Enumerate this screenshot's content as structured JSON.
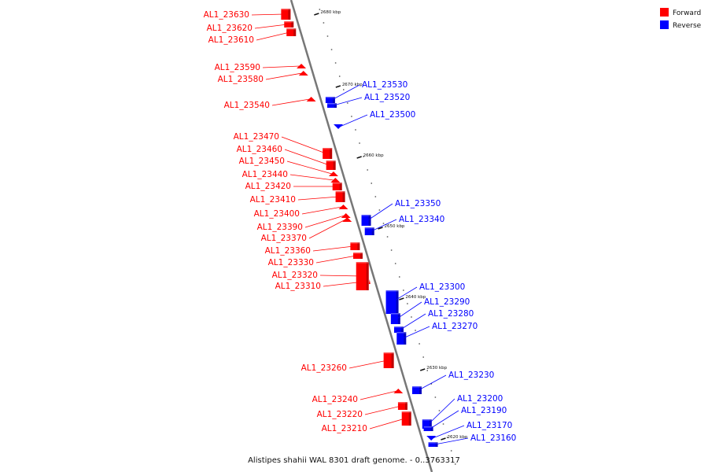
{
  "caption": "Alistipes shahii WAL 8301 draft genome. - 0..3763317",
  "legend": [
    {
      "label": "Forward",
      "color": "#ff0000"
    },
    {
      "label": "Reverse",
      "color": "#0000ff"
    }
  ],
  "ruler_labels": [
    "2680 kbp",
    "2670 kbp",
    "2660 kbp",
    "2650 kbp",
    "2640 kbp",
    "2630 kbp",
    "2620 kbp"
  ],
  "genes_forward": [
    "AL1_23630",
    "AL1_23620",
    "AL1_23610",
    "AL1_23590",
    "AL1_23580",
    "AL1_23540",
    "AL1_23470",
    "AL1_23460",
    "AL1_23450",
    "AL1_23440",
    "AL1_23420",
    "AL1_23410",
    "AL1_23400",
    "AL1_23390",
    "AL1_23370",
    "AL1_23360",
    "AL1_23330",
    "AL1_23320",
    "AL1_23310",
    "AL1_23260",
    "AL1_23240",
    "AL1_23220",
    "AL1_23210"
  ],
  "genes_reverse": [
    "AL1_23530",
    "AL1_23520",
    "AL1_23500",
    "AL1_23350",
    "AL1_23340",
    "AL1_23300",
    "AL1_23290",
    "AL1_23280",
    "AL1_23270",
    "AL1_23230",
    "AL1_23200",
    "AL1_23190",
    "AL1_23170",
    "AL1_23160"
  ]
}
